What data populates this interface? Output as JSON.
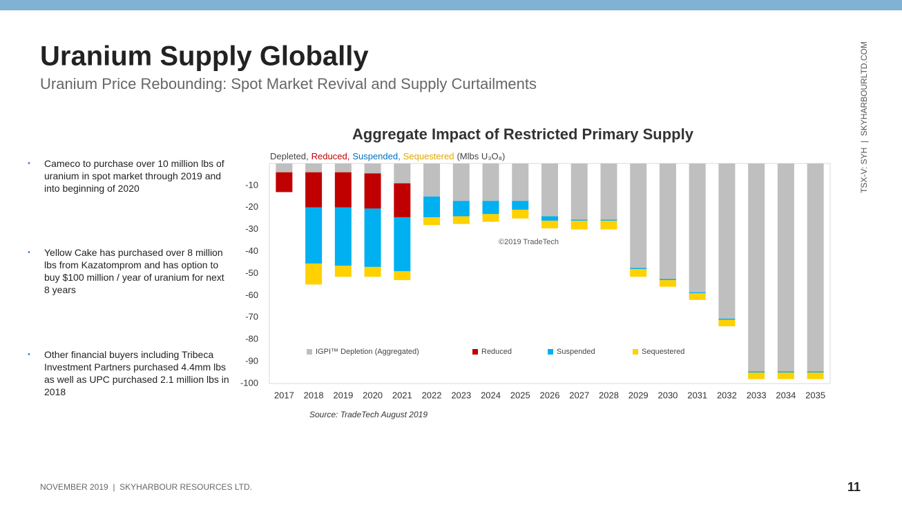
{
  "header": {
    "title": "Uranium Supply Globally",
    "subtitle": "Uranium Price Rebounding: Spot Market Revival and Supply Curtailments",
    "side_text": "TSX-V: SYH  |  SKYHARBOURLTD.COM"
  },
  "bullets": [
    "Cameco to purchase over 10 million lbs of uranium in spot market through 2019 and into beginning of 2020",
    "Yellow Cake has purchased over 8 million lbs from Kazatomprom and has option to buy $100 million / year of uranium for next 8 years",
    "Other financial buyers including Tribeca Investment Partners purchased 4.4mm lbs as well as UPC purchased 2.1 million lbs in 2018"
  ],
  "footer": {
    "text": "NOVEMBER 2019  |  SKYHARBOUR RESOURCES LTD.",
    "page": "11"
  },
  "chart_data": {
    "type": "stacked_bar",
    "title": "Aggregate Impact of Restricted Primary Supply",
    "ylabel": [
      {
        "text": "Depleted,",
        "color": "#444444"
      },
      {
        "text": "Reduced,",
        "color": "#c00000"
      },
      {
        "text": "Suspended,",
        "color": "#0070c0"
      },
      {
        "text": "Sequestered",
        "color": "#e0a800"
      },
      {
        "text": "(Mlbs U₃O₈)",
        "color": "#444444"
      }
    ],
    "annotation": "©2019 TradeTech",
    "source": "Source: TradeTech August 2019",
    "categories": [
      "2017",
      "2018",
      "2019",
      "2020",
      "2021",
      "2022",
      "2023",
      "2024",
      "2025",
      "2026",
      "2027",
      "2028",
      "2029",
      "2030",
      "2031",
      "2032",
      "2033",
      "2034",
      "2035"
    ],
    "series": [
      {
        "name": "IGPI™ Depletion (Aggregated)",
        "color": "#bfbfbf",
        "values": [
          -4,
          -4,
          -4,
          -4.5,
          -9,
          -15,
          -17,
          -17,
          -17,
          -24,
          -25.5,
          -25.5,
          -47.5,
          -52.5,
          -58.5,
          -70.5,
          -94.5,
          -94.5,
          -94.5
        ]
      },
      {
        "name": "Reduced",
        "color": "#c00000",
        "values": [
          -9,
          -16,
          -16,
          -16,
          -15.5,
          0,
          0,
          0,
          0,
          0,
          0,
          0,
          0,
          0,
          0,
          0,
          0,
          0,
          0
        ]
      },
      {
        "name": "Suspended",
        "color": "#00b0f0",
        "values": [
          0,
          -25.5,
          -26.5,
          -26.5,
          -24.5,
          -9.5,
          -7,
          -6,
          -4,
          -2,
          -0.5,
          -0.5,
          -0.5,
          -0.5,
          -0.5,
          -0.5,
          -0.5,
          -0.5,
          -0.5
        ]
      },
      {
        "name": "Sequestered",
        "color": "#ffd100",
        "values": [
          0,
          -9.5,
          -5,
          -4.5,
          -4,
          -3.5,
          -3.5,
          -3.5,
          -4,
          -3.5,
          -4,
          -4,
          -3.5,
          -3,
          -3,
          -3,
          -3,
          -3,
          -3
        ]
      }
    ],
    "ylim": [
      -100,
      0
    ],
    "yticks": [
      -10,
      -20,
      -30,
      -40,
      -50,
      -60,
      -70,
      -80,
      -90,
      -100
    ],
    "grid": false
  }
}
